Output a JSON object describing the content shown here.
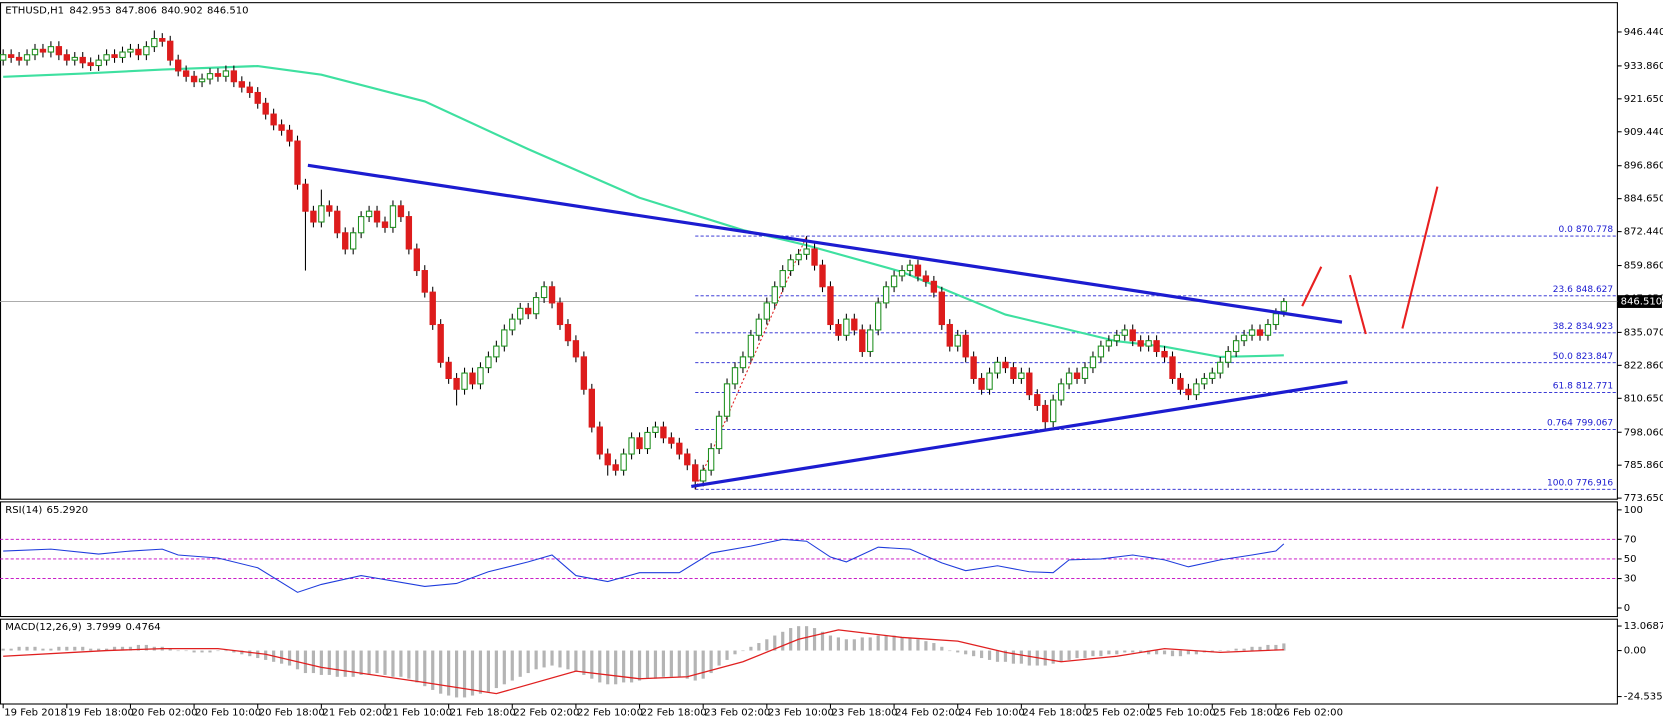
{
  "chart_data": {
    "type": "candlestick",
    "symbol": "ETHUSD,H1",
    "header_values": [
      842.953,
      847.806,
      840.902,
      {
        "value": 846.51,
        "label": "846.510"
      }
    ],
    "open": [
      936,
      938,
      937,
      936,
      938,
      940,
      939,
      941,
      938,
      936,
      937,
      935,
      934,
      936,
      938,
      937,
      939,
      940,
      938,
      941,
      944,
      943,
      936,
      932,
      930,
      928,
      929,
      931,
      930,
      932,
      928,
      926,
      924,
      920,
      916,
      912,
      910,
      906,
      890,
      880,
      876,
      882,
      880,
      872,
      866,
      872,
      878,
      880,
      876,
      874,
      882,
      878,
      866,
      858,
      850,
      838,
      824,
      818,
      814,
      820,
      816,
      822,
      826,
      830,
      836,
      840,
      844,
      842,
      848,
      852,
      846,
      838,
      832,
      826,
      814,
      800,
      790,
      786,
      784,
      790,
      796,
      792,
      798,
      800,
      796,
      794,
      790,
      786,
      780,
      784,
      792,
      804,
      816,
      822,
      826,
      834,
      840,
      846,
      852,
      858,
      862,
      864,
      866,
      860,
      852,
      838,
      834,
      840,
      836,
      828,
      836,
      846,
      852,
      856,
      858,
      860,
      856,
      854,
      850,
      838,
      830,
      834,
      826,
      818,
      814,
      820,
      824,
      822,
      818,
      820,
      812,
      808,
      802,
      810,
      816,
      820,
      818,
      822,
      826,
      830,
      832,
      834,
      836,
      832,
      830,
      832,
      828,
      826,
      818,
      814,
      812,
      816,
      818,
      820,
      824,
      828,
      832,
      834,
      836,
      834,
      838,
      842.953
    ],
    "high": [
      940,
      940,
      939,
      940,
      942,
      942,
      943,
      943,
      940,
      939,
      939,
      937,
      938,
      940,
      940,
      941,
      942,
      942,
      943,
      947,
      946,
      945,
      938,
      934,
      932,
      931,
      933,
      933,
      934,
      934,
      930,
      928,
      926,
      922,
      918,
      914,
      912,
      908,
      892,
      882,
      888,
      884,
      882,
      874,
      874,
      880,
      882,
      882,
      878,
      884,
      884,
      880,
      868,
      860,
      852,
      840,
      826,
      820,
      822,
      822,
      824,
      828,
      832,
      838,
      842,
      846,
      846,
      850,
      854,
      854,
      848,
      840,
      834,
      828,
      816,
      802,
      792,
      788,
      792,
      798,
      798,
      800,
      802,
      802,
      798,
      796,
      792,
      788,
      786,
      794,
      806,
      818,
      824,
      828,
      836,
      842,
      848,
      854,
      860,
      864,
      866,
      870.78,
      868,
      862,
      854,
      840,
      842,
      842,
      838,
      838,
      848,
      854,
      858,
      860,
      862,
      862,
      858,
      856,
      852,
      840,
      836,
      836,
      828,
      820,
      822,
      826,
      826,
      824,
      822,
      822,
      814,
      810,
      812,
      818,
      822,
      822,
      824,
      828,
      832,
      834,
      836,
      838,
      838,
      834,
      834,
      834,
      830,
      828,
      820,
      816,
      818,
      820,
      822,
      826,
      830,
      834,
      836,
      838,
      838,
      840,
      844,
      847.806
    ],
    "low": [
      934,
      935,
      934,
      934,
      936,
      937,
      937,
      936,
      934,
      934,
      933,
      932,
      932,
      934,
      935,
      935,
      937,
      936,
      936,
      939,
      941,
      934,
      930,
      928,
      926,
      926,
      927,
      928,
      928,
      926,
      924,
      922,
      918,
      914,
      910,
      908,
      904,
      888,
      858,
      874,
      874,
      878,
      870,
      864,
      864,
      870,
      876,
      874,
      872,
      872,
      876,
      864,
      856,
      848,
      836,
      822,
      816,
      808,
      812,
      814,
      814,
      820,
      824,
      828,
      834,
      838,
      840,
      840,
      846,
      844,
      836,
      830,
      824,
      812,
      798,
      788,
      782,
      782,
      782,
      788,
      790,
      790,
      796,
      794,
      792,
      788,
      784,
      776.92,
      778,
      782,
      790,
      802,
      814,
      820,
      824,
      832,
      838,
      844,
      850,
      856,
      860,
      862,
      858,
      850,
      836,
      832,
      832,
      834,
      826,
      826,
      834,
      844,
      850,
      854,
      856,
      854,
      852,
      848,
      836,
      828,
      828,
      824,
      816,
      812,
      812,
      818,
      820,
      816,
      816,
      810,
      806,
      799.07,
      800,
      808,
      814,
      816,
      816,
      820,
      824,
      828,
      830,
      832,
      830,
      828,
      828,
      826,
      824,
      816,
      812,
      810,
      810,
      814,
      816,
      818,
      822,
      826,
      830,
      832,
      832,
      832,
      836,
      840.902
    ],
    "close": [
      938,
      937,
      936,
      938,
      940,
      939,
      941,
      938,
      936,
      937,
      935,
      934,
      936,
      938,
      937,
      939,
      940,
      938,
      941,
      944,
      943,
      936,
      932,
      930,
      928,
      929,
      931,
      930,
      932,
      928,
      926,
      924,
      920,
      916,
      912,
      910,
      906,
      890,
      880,
      876,
      882,
      880,
      872,
      866,
      872,
      878,
      880,
      876,
      874,
      882,
      878,
      866,
      858,
      850,
      838,
      824,
      818,
      814,
      820,
      816,
      822,
      826,
      830,
      836,
      840,
      844,
      842,
      848,
      852,
      846,
      838,
      832,
      826,
      814,
      800,
      790,
      786,
      784,
      790,
      796,
      792,
      798,
      800,
      796,
      794,
      790,
      786,
      780,
      784,
      792,
      804,
      816,
      822,
      826,
      834,
      840,
      846,
      852,
      858,
      862,
      864,
      866,
      860,
      852,
      838,
      834,
      840,
      836,
      828,
      836,
      846,
      852,
      856,
      858,
      860,
      856,
      854,
      850,
      838,
      830,
      834,
      826,
      818,
      814,
      820,
      824,
      822,
      818,
      820,
      812,
      808,
      802,
      810,
      816,
      820,
      818,
      822,
      826,
      830,
      832,
      834,
      836,
      832,
      830,
      832,
      828,
      826,
      818,
      814,
      812,
      816,
      818,
      820,
      824,
      828,
      832,
      834,
      836,
      834,
      838,
      842,
      846.51
    ],
    "up_color": "#1e8f1e",
    "down_color": "#dd1c1c",
    "wick_color": "#000000",
    "xlim": [
      -0.4,
      202.93
    ],
    "xticks": [
      {
        "value": 0,
        "label": "19 Feb 2018"
      },
      {
        "value": 8,
        "label": "19 Feb 18:00"
      },
      {
        "value": 16,
        "label": "20 Feb 02:00"
      },
      {
        "value": 24,
        "label": "20 Feb 10:00"
      },
      {
        "value": 32,
        "label": "20 Feb 18:00"
      },
      {
        "value": 40,
        "label": "21 Feb 02:00"
      },
      {
        "value": 48,
        "label": "21 Feb 10:00"
      },
      {
        "value": 56,
        "label": "21 Feb 18:00"
      },
      {
        "value": 64,
        "label": "22 Feb 02:00"
      },
      {
        "value": 72,
        "label": "22 Feb 10:00"
      },
      {
        "value": 80,
        "label": "22 Feb 18:00"
      },
      {
        "value": 88,
        "label": "23 Feb 02:00"
      },
      {
        "value": 96,
        "label": "23 Feb 10:00"
      },
      {
        "value": 104,
        "label": "23 Feb 18:00"
      },
      {
        "value": 112,
        "label": "24 Feb 02:00"
      },
      {
        "value": 120,
        "label": "24 Feb 10:00"
      },
      {
        "value": 128,
        "label": "24 Feb 18:00"
      },
      {
        "value": 136,
        "label": "25 Feb 02:00"
      },
      {
        "value": 144,
        "label": "25 Feb 10:00"
      },
      {
        "value": 152,
        "label": "25 Feb 18:00"
      },
      {
        "value": 160,
        "label": "26 Feb 02:00"
      }
    ],
    "ylim": [
      773.25,
      957.1
    ],
    "yticks": [
      {
        "value": 946.44,
        "label": "946.440"
      },
      {
        "value": 933.86,
        "label": "933.860"
      },
      {
        "value": 921.65,
        "label": "921.650"
      },
      {
        "value": 909.44,
        "label": "909.440"
      },
      {
        "value": 896.86,
        "label": "896.860"
      },
      {
        "value": 884.65,
        "label": "884.650"
      },
      {
        "value": 872.44,
        "label": "872.440"
      },
      {
        "value": 859.86,
        "label": "859.860"
      },
      {
        "value": 847.65,
        "label": "847.650"
      },
      {
        "value": 835.07,
        "label": "835.070"
      },
      {
        "value": 822.86,
        "label": "822.860"
      },
      {
        "value": 810.65,
        "label": "810.650"
      },
      {
        "value": 798.06,
        "label": "798.060"
      },
      {
        "value": 785.86,
        "label": "785.860"
      },
      {
        "value": 773.65,
        "label": "773.650"
      }
    ],
    "last_price": {
      "value": 846.51,
      "label": "846.510"
    },
    "ma": {
      "color": "#3ee0a0",
      "x": [
        0,
        10,
        20,
        32,
        40,
        53,
        66,
        80,
        93,
        101,
        113,
        126,
        140,
        146,
        153,
        161
      ],
      "values": [
        929.8,
        931,
        932.5,
        933.8,
        930.6,
        920.7,
        903,
        885,
        873,
        867.4,
        857.5,
        841.7,
        831.8,
        829.8,
        826,
        826.6
      ]
    },
    "trendlines": [
      {
        "color": "#1c1cd0",
        "x": [
          38.3,
          168.3
        ],
        "values": [
          897,
          838.9
        ]
      },
      {
        "color": "#1c1cd0",
        "x": [
          86.5,
          169
        ],
        "values": [
          778,
          816.7
        ]
      }
    ],
    "projections": {
      "color": "#e82020",
      "lines": [
        {
          "x": [
            163.3,
            165.7
          ],
          "values": [
            844.8,
            859.4
          ]
        },
        {
          "x": [
            169.3,
            171.3
          ],
          "values": [
            856.3,
            834.5
          ]
        },
        {
          "x": [
            175.9,
            180.3
          ],
          "values": [
            836.5,
            889.1
          ]
        }
      ]
    },
    "fib": {
      "color": "#2020d0",
      "x": [
        87,
        101
      ],
      "levels": [
        {
          "level": "0.0",
          "price": 870.778
        },
        {
          "level": "23.6",
          "price": 848.627
        },
        {
          "level": "38.2",
          "price": 834.923
        },
        {
          "level": "50.0",
          "price": 823.847
        },
        {
          "level": "61.8",
          "price": 812.771
        },
        {
          "level": "0.764",
          "price": 799.067
        },
        {
          "level": "100.0",
          "price": 776.916
        }
      ]
    },
    "rsi": {
      "name": "RSI(14)",
      "last": {
        "value": 65.292,
        "label": "65.2920"
      },
      "color": "#1e3cdc",
      "level_color": "#c000c0",
      "ylim": [
        -8.7,
        108.7
      ],
      "yticks": [
        100,
        70,
        50,
        30,
        0
      ],
      "levels": [
        70,
        50,
        30
      ],
      "x": [
        0,
        6,
        12,
        16,
        20,
        22,
        27,
        32,
        37,
        40,
        45,
        53,
        57,
        61,
        66,
        69,
        72,
        76,
        80,
        85,
        89,
        94,
        98,
        101,
        104,
        106,
        110,
        114,
        118,
        121,
        125,
        129,
        132,
        134,
        138,
        142,
        146,
        149,
        153,
        157,
        160,
        161
      ],
      "values": [
        58,
        60,
        55,
        58,
        60,
        54,
        51,
        41,
        16,
        24,
        33,
        22,
        25,
        37,
        47,
        54,
        33,
        27,
        36,
        36,
        56,
        63,
        70,
        68,
        52,
        47,
        62,
        60,
        46,
        38,
        43,
        37,
        36,
        49,
        50,
        54,
        49,
        42,
        49,
        54,
        58,
        65.292
      ]
    },
    "macd": {
      "name": "MACD(12,26,9)",
      "main_value": 3.7999,
      "signal_value": 0.4764,
      "histogram_color": "#b4b4b4",
      "signal_color": "#e02020",
      "ylim": [
        -28.5,
        17
      ],
      "yticks": [
        13.0687,
        {
          "value": 0,
          "label": "0.00"
        },
        -24.5353
      ],
      "histogram": [
        1,
        1,
        2,
        2,
        2,
        1,
        1,
        2,
        2,
        2,
        2,
        1,
        1,
        1,
        2,
        2,
        2,
        3,
        3,
        2,
        2,
        1,
        0,
        0,
        -1,
        -1,
        -1,
        0,
        0,
        -1,
        -2,
        -3,
        -4,
        -5,
        -6,
        -7,
        -8,
        -10,
        -12,
        -12,
        -13,
        -13,
        -14,
        -14,
        -14,
        -13,
        -13,
        -12,
        -13,
        -14,
        -14,
        -15,
        -17,
        -19,
        -21,
        -23,
        -24,
        -25,
        -25,
        -24,
        -23,
        -22,
        -20,
        -18,
        -16,
        -14,
        -12,
        -10,
        -9,
        -8,
        -9,
        -10,
        -11,
        -13,
        -15,
        -17,
        -18,
        -18,
        -17,
        -17,
        -16,
        -15,
        -15,
        -14,
        -14,
        -14,
        -15,
        -16,
        -15,
        -12,
        -8,
        -5,
        -2,
        0,
        2,
        4,
        6,
        8,
        10,
        12,
        13,
        13,
        12,
        10,
        8,
        7,
        6,
        6,
        7,
        7,
        8,
        8,
        8,
        7,
        7,
        6,
        5,
        4,
        2,
        0,
        -1,
        -2,
        -3,
        -4,
        -5,
        -6,
        -6,
        -7,
        -7,
        -8,
        -8,
        -8,
        -7,
        -6,
        -5,
        -4,
        -4,
        -3,
        -3,
        -2,
        -2,
        -1,
        -1,
        -1,
        -2,
        -2,
        -2,
        -3,
        -3,
        -2,
        -2,
        -1,
        -1,
        0,
        0,
        1,
        1,
        2,
        2,
        3,
        3,
        3.7999
      ],
      "signal_x": [
        0,
        13,
        20,
        27,
        33,
        40,
        53,
        62,
        72,
        80,
        86,
        93,
        100,
        105,
        113,
        120,
        126,
        133,
        140,
        146,
        153,
        161
      ],
      "signal": [
        -3,
        0,
        1,
        1,
        -2,
        -9,
        -17,
        -23,
        -11,
        -15,
        -14,
        -6,
        6,
        11,
        7,
        5,
        -1,
        -6,
        -3,
        1,
        -1,
        0.4764
      ]
    }
  }
}
